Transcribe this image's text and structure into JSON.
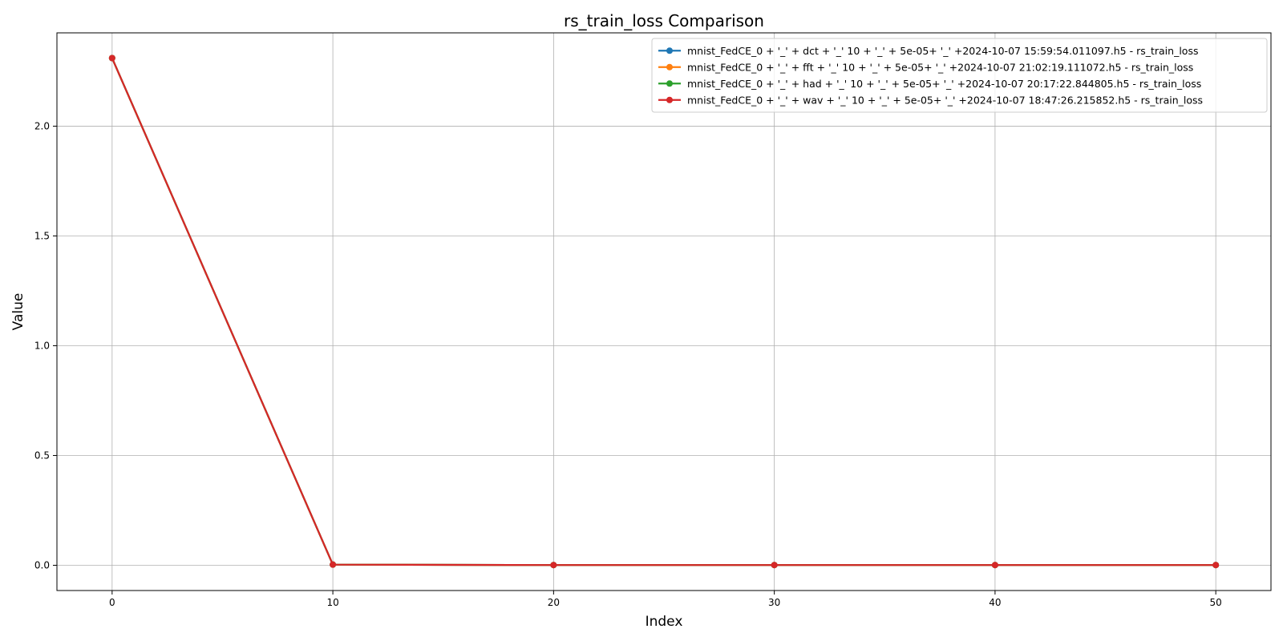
{
  "chart_data": {
    "type": "line",
    "title": "rs_train_loss Comparison",
    "xlabel": "Index",
    "ylabel": "Value",
    "xlim": [
      -2.5,
      52.5
    ],
    "ylim": [
      -0.115,
      2.425
    ],
    "xticks": [
      0,
      10,
      20,
      30,
      40,
      50
    ],
    "yticks": [
      0.0,
      0.5,
      1.0,
      1.5,
      2.0
    ],
    "grid": true,
    "legend_position": "top-right",
    "x": [
      0,
      10,
      20,
      30,
      40,
      50
    ],
    "series": [
      {
        "name": "mnist_FedCE_0 + '_' + dct + '_' 10 + '_' + 5e-05+ '_' +2024-10-07 15:59:54.011097.h5 - rs_train_loss",
        "color": "#1f77b4",
        "values": [
          2.31,
          0.003,
          0.001,
          0.001,
          0.001,
          0.001
        ]
      },
      {
        "name": "mnist_FedCE_0 + '_' + fft + '_' 10 + '_' + 5e-05+ '_' +2024-10-07 21:02:19.111072.h5 - rs_train_loss",
        "color": "#ff7f0e",
        "values": [
          2.31,
          0.003,
          0.001,
          0.001,
          0.001,
          0.001
        ]
      },
      {
        "name": "mnist_FedCE_0 + '_' + had + '_' 10 + '_' + 5e-05+ '_' +2024-10-07 20:17:22.844805.h5 - rs_train_loss",
        "color": "#2ca02c",
        "values": [
          2.31,
          0.003,
          0.001,
          0.001,
          0.001,
          0.001
        ]
      },
      {
        "name": "mnist_FedCE_0 + '_' + wav + '_' 10 + '_' + 5e-05+ '_' +2024-10-07 18:47:26.215852.h5 - rs_train_loss",
        "color": "#d62728",
        "values": [
          2.31,
          0.003,
          0.001,
          0.001,
          0.001,
          0.001
        ]
      }
    ]
  }
}
